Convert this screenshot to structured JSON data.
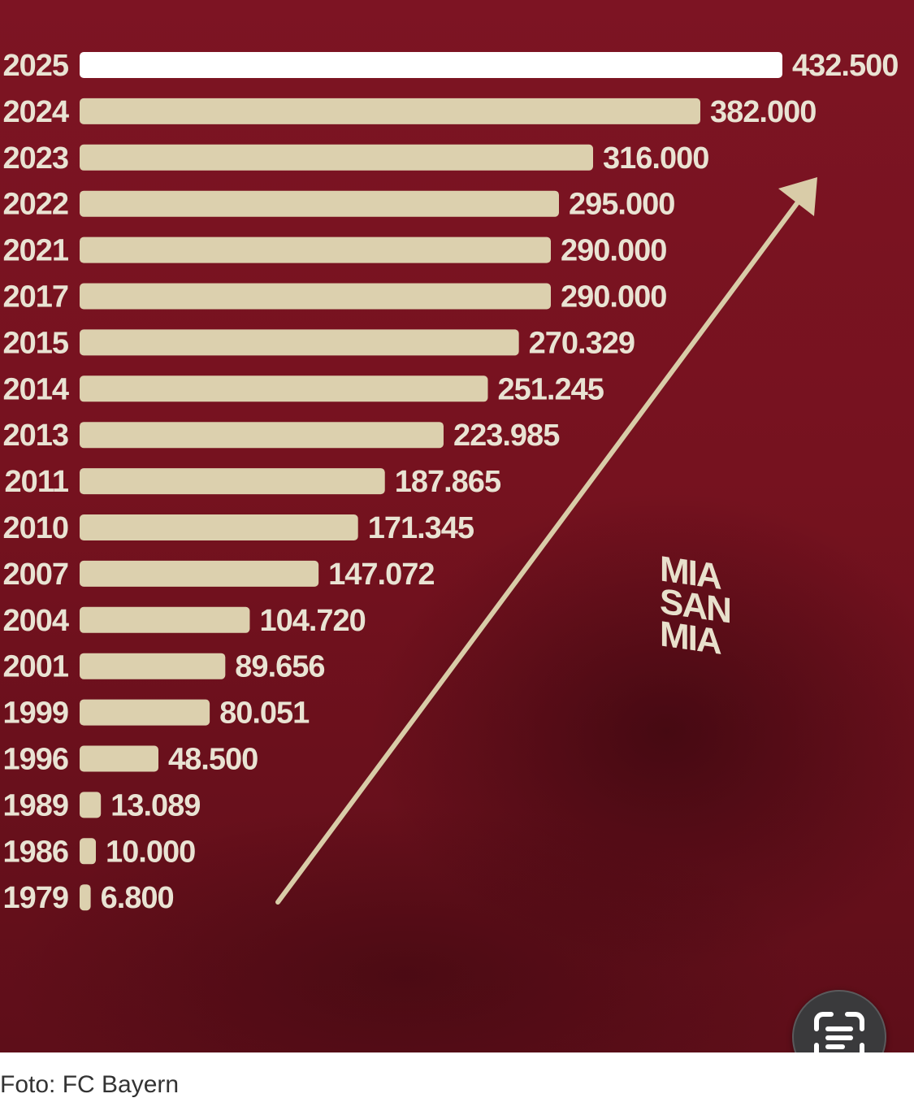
{
  "chart_data": {
    "type": "bar",
    "orientation": "horizontal",
    "categories": [
      "2025",
      "2024",
      "2023",
      "2022",
      "2021",
      "2017",
      "2015",
      "2014",
      "2013",
      "2011",
      "2010",
      "2007",
      "2004",
      "2001",
      "1999",
      "1996",
      "1989",
      "1986",
      "1979"
    ],
    "values": [
      432500,
      382000,
      316000,
      295000,
      290000,
      290000,
      270329,
      251245,
      223985,
      187865,
      171345,
      147072,
      104720,
      89656,
      80051,
      48500,
      13089,
      10000,
      6800
    ],
    "value_labels": [
      "432.500",
      "382.000",
      "316.000",
      "295.000",
      "290.000",
      "290.000",
      "270.329",
      "251.245",
      "223.985",
      "187.865",
      "171.345",
      "147.072",
      "104.720",
      "89.656",
      "80.051",
      "48.500",
      "13.089",
      "10.000",
      "6.800"
    ],
    "title": "",
    "xlabel": "",
    "ylabel": "",
    "xlim": [
      0,
      432500
    ],
    "grid": false,
    "legend": "none"
  },
  "colors": {
    "background": "#7a1322",
    "bar": "#dcd0ae",
    "bar_highlight": "#ffffff",
    "text": "#e9e3d3",
    "arrow": "#d9cca8"
  },
  "logo_text": [
    "MIA",
    "SAN",
    "MIA"
  ],
  "caption": "Foto: FC Bayern",
  "icons": {
    "scan": "live-text-scan-icon",
    "arrow": "trend-arrow-icon"
  }
}
